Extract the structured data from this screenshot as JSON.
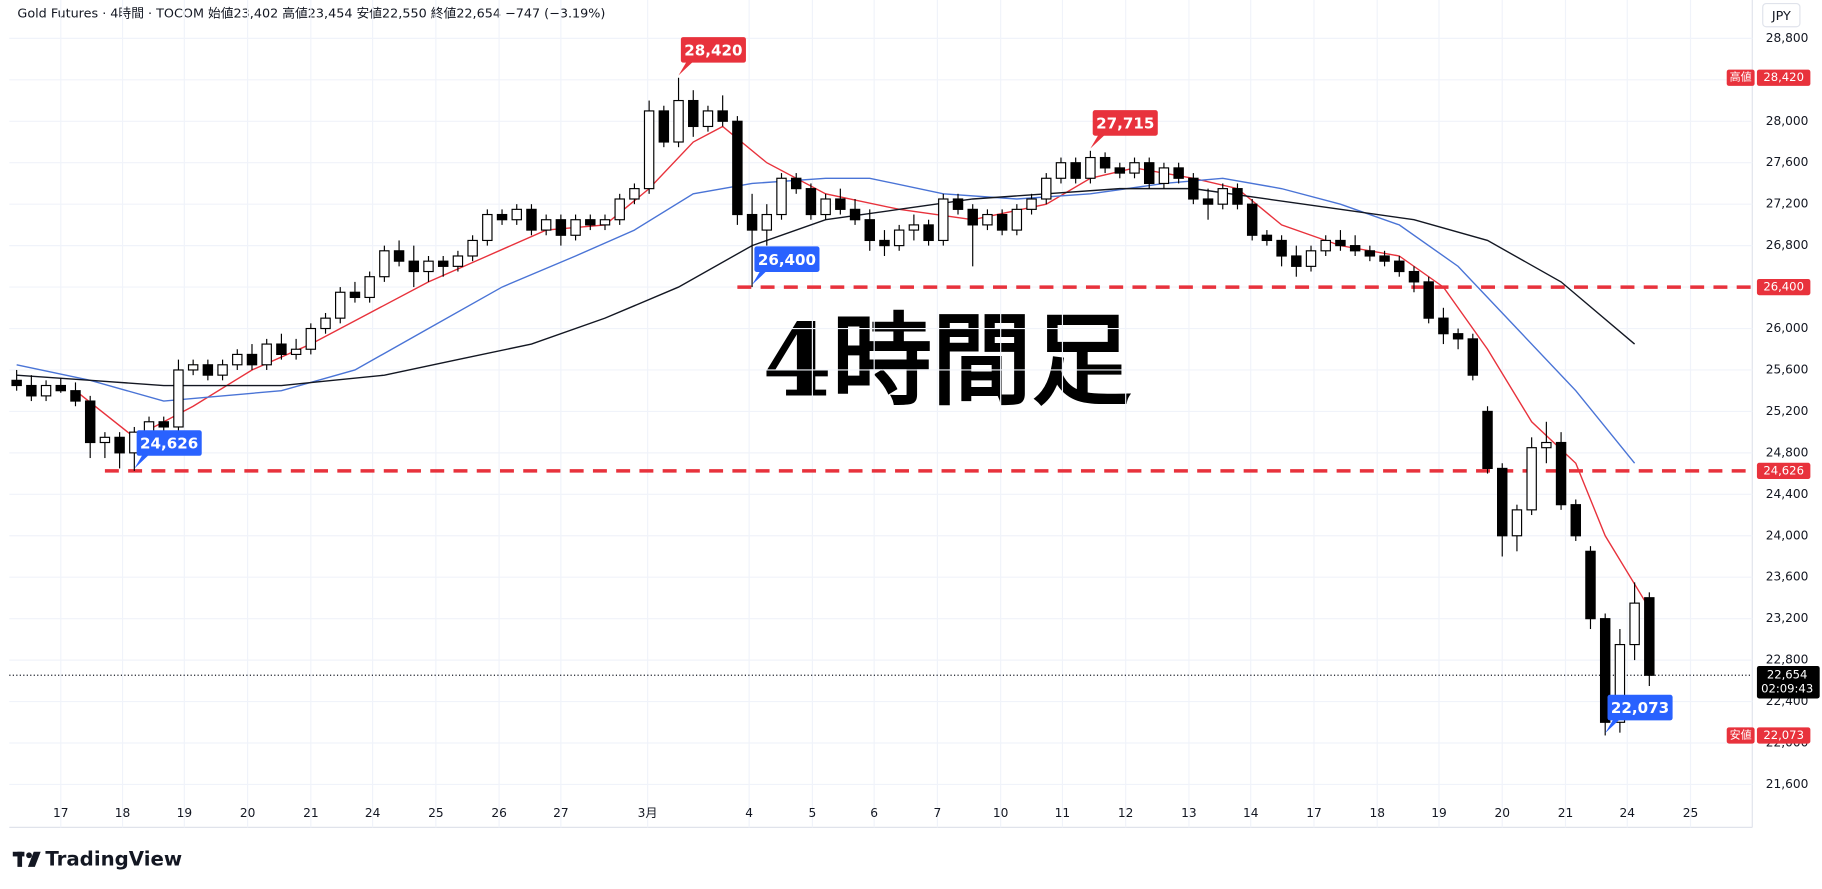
{
  "header": {
    "title": "Gold Futures · 4時間 · TOCOM  始値23,402  高値23,454  安値22,550  終値22,654  −747 (−3.19%)",
    "currency": "JPY"
  },
  "footer": {
    "brand": "TradingView"
  },
  "chart_data": {
    "type": "candlestick",
    "watermark": "4時間足",
    "xlim": [
      -0.5,
      118
    ],
    "ylim": [
      21455,
      29170
    ],
    "grid": true,
    "up_color": "#ffffff",
    "down_color": "#000000",
    "xticks": [
      {
        "value": 3.0,
        "label": "17"
      },
      {
        "value": 7.2,
        "label": "18"
      },
      {
        "value": 11.4,
        "label": "19"
      },
      {
        "value": 15.7,
        "label": "20"
      },
      {
        "value": 20.0,
        "label": "21"
      },
      {
        "value": 24.2,
        "label": "24"
      },
      {
        "value": 28.5,
        "label": "25"
      },
      {
        "value": 32.8,
        "label": "26"
      },
      {
        "value": 37.0,
        "label": "27"
      },
      {
        "value": 42.9,
        "label": "3月"
      },
      {
        "value": 49.8,
        "label": "4"
      },
      {
        "value": 54.1,
        "label": "5"
      },
      {
        "value": 58.3,
        "label": "6"
      },
      {
        "value": 62.6,
        "label": "7"
      },
      {
        "value": 66.9,
        "label": "10"
      },
      {
        "value": 71.1,
        "label": "11"
      },
      {
        "value": 75.4,
        "label": "12"
      },
      {
        "value": 79.7,
        "label": "13"
      },
      {
        "value": 83.9,
        "label": "14"
      },
      {
        "value": 88.2,
        "label": "17"
      },
      {
        "value": 92.5,
        "label": "18"
      },
      {
        "value": 96.7,
        "label": "19"
      },
      {
        "value": 101.0,
        "label": "20"
      },
      {
        "value": 105.3,
        "label": "21"
      },
      {
        "value": 109.5,
        "label": "24"
      },
      {
        "value": 113.8,
        "label": "25"
      }
    ],
    "yticks": [
      {
        "value": 21600,
        "label": "21,600"
      },
      {
        "value": 22000,
        "label": "22,000"
      },
      {
        "value": 22400,
        "label": "22,400"
      },
      {
        "value": 22800,
        "label": "22,800"
      },
      {
        "value": 23200,
        "label": "23,200"
      },
      {
        "value": 23600,
        "label": "23,600"
      },
      {
        "value": 24000,
        "label": "24,000"
      },
      {
        "value": 24400,
        "label": "24,400"
      },
      {
        "value": 24800,
        "label": "24,800"
      },
      {
        "value": 25200,
        "label": "25,200"
      },
      {
        "value": 25600,
        "label": "25,600"
      },
      {
        "value": 26000,
        "label": "26,000"
      },
      {
        "value": 26400,
        "label": "26,400"
      },
      {
        "value": 26800,
        "label": "26,800"
      },
      {
        "value": 27200,
        "label": "27,200"
      },
      {
        "value": 27600,
        "label": "27,600"
      },
      {
        "value": 28000,
        "label": "28,000"
      },
      {
        "value": 28400,
        "label": "28,400"
      },
      {
        "value": 28800,
        "label": "28,800"
      }
    ],
    "ohlc": [
      [
        25500,
        25600,
        25400,
        25450
      ],
      [
        25450,
        25550,
        25300,
        25350
      ],
      [
        25350,
        25500,
        25300,
        25450
      ],
      [
        25450,
        25520,
        25380,
        25400
      ],
      [
        25400,
        25480,
        25250,
        25300
      ],
      [
        25300,
        25350,
        24750,
        24900
      ],
      [
        24900,
        25000,
        24750,
        24950
      ],
      [
        24950,
        25000,
        24650,
        24800
      ],
      [
        24800,
        25050,
        24626,
        25000
      ],
      [
        25000,
        25150,
        24950,
        25100
      ],
      [
        25100,
        25150,
        25000,
        25050
      ],
      [
        25050,
        25700,
        25000,
        25600
      ],
      [
        25600,
        25700,
        25550,
        25650
      ],
      [
        25650,
        25700,
        25500,
        25550
      ],
      [
        25550,
        25700,
        25500,
        25650
      ],
      [
        25650,
        25800,
        25600,
        25750
      ],
      [
        25750,
        25850,
        25600,
        25650
      ],
      [
        25650,
        25900,
        25600,
        25850
      ],
      [
        25850,
        25950,
        25700,
        25750
      ],
      [
        25750,
        25900,
        25700,
        25800
      ],
      [
        25800,
        26050,
        25750,
        26000
      ],
      [
        26000,
        26150,
        25950,
        26100
      ],
      [
        26100,
        26400,
        26050,
        26350
      ],
      [
        26350,
        26450,
        26250,
        26300
      ],
      [
        26300,
        26550,
        26250,
        26500
      ],
      [
        26500,
        26800,
        26450,
        26750
      ],
      [
        26750,
        26850,
        26600,
        26650
      ],
      [
        26650,
        26800,
        26400,
        26550
      ],
      [
        26550,
        26700,
        26450,
        26650
      ],
      [
        26650,
        26700,
        26500,
        26600
      ],
      [
        26600,
        26750,
        26550,
        26700
      ],
      [
        26700,
        26900,
        26650,
        26850
      ],
      [
        26850,
        27150,
        26800,
        27100
      ],
      [
        27100,
        27150,
        27000,
        27050
      ],
      [
        27050,
        27200,
        27000,
        27150
      ],
      [
        27150,
        27200,
        26900,
        26950
      ],
      [
        26950,
        27100,
        26900,
        27050
      ],
      [
        27050,
        27100,
        26800,
        26900
      ],
      [
        26900,
        27100,
        26850,
        27050
      ],
      [
        27050,
        27100,
        26950,
        27000
      ],
      [
        27000,
        27100,
        26950,
        27050
      ],
      [
        27050,
        27300,
        27000,
        27250
      ],
      [
        27250,
        27400,
        27200,
        27350
      ],
      [
        27350,
        28200,
        27300,
        28100
      ],
      [
        28100,
        28150,
        27750,
        27800
      ],
      [
        27800,
        28420,
        27750,
        28200
      ],
      [
        28200,
        28300,
        27850,
        27950
      ],
      [
        27950,
        28150,
        27900,
        28100
      ],
      [
        28100,
        28250,
        27950,
        28000
      ],
      [
        28000,
        28050,
        27000,
        27100
      ],
      [
        27100,
        27300,
        26400,
        26950
      ],
      [
        26950,
        27200,
        26800,
        27100
      ],
      [
        27100,
        27500,
        27050,
        27450
      ],
      [
        27450,
        27500,
        27300,
        27350
      ],
      [
        27350,
        27400,
        27050,
        27100
      ],
      [
        27100,
        27300,
        27050,
        27250
      ],
      [
        27250,
        27350,
        27100,
        27150
      ],
      [
        27150,
        27250,
        27000,
        27050
      ],
      [
        27050,
        27150,
        26750,
        26850
      ],
      [
        26850,
        26950,
        26700,
        26800
      ],
      [
        26800,
        27000,
        26750,
        26950
      ],
      [
        26950,
        27100,
        26850,
        27000
      ],
      [
        27000,
        27050,
        26800,
        26850
      ],
      [
        26850,
        27300,
        26800,
        27250
      ],
      [
        27250,
        27300,
        27100,
        27150
      ],
      [
        27150,
        27200,
        26600,
        27000
      ],
      [
        27000,
        27150,
        26950,
        27100
      ],
      [
        27100,
        27150,
        26900,
        26950
      ],
      [
        26950,
        27200,
        26900,
        27150
      ],
      [
        27150,
        27300,
        27100,
        27250
      ],
      [
        27250,
        27500,
        27200,
        27450
      ],
      [
        27450,
        27650,
        27400,
        27600
      ],
      [
        27600,
        27650,
        27400,
        27450
      ],
      [
        27450,
        27715,
        27400,
        27650
      ],
      [
        27650,
        27700,
        27500,
        27550
      ],
      [
        27550,
        27600,
        27450,
        27500
      ],
      [
        27500,
        27650,
        27450,
        27600
      ],
      [
        27600,
        27650,
        27350,
        27400
      ],
      [
        27400,
        27600,
        27350,
        27550
      ],
      [
        27550,
        27600,
        27400,
        27450
      ],
      [
        27450,
        27500,
        27200,
        27250
      ],
      [
        27250,
        27350,
        27050,
        27200
      ],
      [
        27200,
        27400,
        27150,
        27350
      ],
      [
        27350,
        27400,
        27150,
        27200
      ],
      [
        27200,
        27250,
        26850,
        26900
      ],
      [
        26900,
        26950,
        26800,
        26850
      ],
      [
        26850,
        26900,
        26600,
        26700
      ],
      [
        26700,
        26800,
        26500,
        26600
      ],
      [
        26600,
        26800,
        26550,
        26750
      ],
      [
        26750,
        26900,
        26700,
        26850
      ],
      [
        26850,
        26950,
        26750,
        26800
      ],
      [
        26800,
        26900,
        26700,
        26750
      ],
      [
        26750,
        26800,
        26650,
        26700
      ],
      [
        26700,
        26750,
        26600,
        26650
      ],
      [
        26650,
        26700,
        26500,
        26550
      ],
      [
        26550,
        26600,
        26350,
        26450
      ],
      [
        26450,
        26500,
        26050,
        26100
      ],
      [
        26100,
        26200,
        25850,
        25950
      ],
      [
        25950,
        26000,
        25800,
        25900
      ],
      [
        25900,
        25950,
        25500,
        25550
      ],
      [
        25200,
        25250,
        24600,
        24650
      ],
      [
        24650,
        24700,
        23800,
        24000
      ],
      [
        24000,
        24300,
        23850,
        24250
      ],
      [
        24250,
        24950,
        24200,
        24850
      ],
      [
        24850,
        25100,
        24700,
        24900
      ],
      [
        24900,
        25000,
        24250,
        24300
      ],
      [
        24300,
        24350,
        23950,
        24000
      ],
      [
        23850,
        23900,
        23100,
        23200
      ],
      [
        23200,
        23250,
        22073,
        22200
      ],
      [
        22200,
        23100,
        22100,
        22950
      ],
      [
        22950,
        23550,
        22800,
        23350
      ],
      [
        23402,
        23454,
        22550,
        22654
      ]
    ],
    "series": [
      {
        "color": "#e8323c",
        "x": [
          4,
          8,
          12,
          16,
          20,
          24,
          28,
          32,
          36,
          40,
          43,
          46,
          48,
          51,
          55,
          60,
          65,
          70,
          73,
          76,
          80,
          83,
          86,
          90,
          94,
          97,
          100,
          103,
          106,
          108,
          111
        ],
        "values": [
          25400,
          24950,
          25250,
          25600,
          25850,
          26150,
          26450,
          26700,
          26950,
          27000,
          27350,
          27800,
          27950,
          27600,
          27300,
          27150,
          27050,
          27200,
          27450,
          27550,
          27450,
          27350,
          27000,
          26800,
          26700,
          26400,
          25800,
          25100,
          24700,
          24000,
          23300
        ]
      },
      {
        "color": "#4a74d6",
        "x": [
          0,
          5,
          10,
          18,
          23,
          28,
          33,
          38,
          42,
          46,
          50,
          55,
          58,
          63,
          68,
          73,
          78,
          82,
          86,
          90,
          94,
          98,
          102,
          106,
          110
        ],
        "values": [
          25650,
          25500,
          25300,
          25400,
          25600,
          26000,
          26400,
          26700,
          26950,
          27300,
          27400,
          27450,
          27450,
          27300,
          27250,
          27300,
          27400,
          27450,
          27350,
          27200,
          27000,
          26600,
          26000,
          25400,
          24700
        ]
      },
      {
        "color": "#131722",
        "x": [
          0,
          5,
          10,
          18,
          25,
          30,
          35,
          40,
          45,
          50,
          55,
          60,
          65,
          70,
          75,
          80,
          85,
          90,
          95,
          100,
          105,
          110
        ],
        "values": [
          25550,
          25500,
          25450,
          25450,
          25550,
          25700,
          25850,
          26100,
          26400,
          26800,
          27050,
          27150,
          27250,
          27300,
          27350,
          27350,
          27250,
          27150,
          27050,
          26850,
          26450,
          25850
        ]
      }
    ],
    "levels": [
      {
        "value": 26400,
        "label": "26,400",
        "x_from": 49,
        "color": "#e8323c"
      },
      {
        "value": 24626,
        "label": "24,626",
        "x_from": 6,
        "color": "#e8323c"
      }
    ],
    "annotations": [
      {
        "x": 45,
        "value": 28420,
        "label": "28,420",
        "kind": "high",
        "color": "#e8323c"
      },
      {
        "x": 73,
        "value": 27715,
        "label": "27,715",
        "kind": "high",
        "color": "#e8323c"
      },
      {
        "x": 50,
        "value": 26400,
        "label": "26,400",
        "kind": "low",
        "color": "#2962ff"
      },
      {
        "x": 8,
        "value": 24626,
        "label": "24,626",
        "kind": "low",
        "color": "#2962ff"
      },
      {
        "x": 108,
        "value": 22073,
        "label": "22,073",
        "kind": "low",
        "color": "#2962ff"
      }
    ],
    "high_tag": {
      "text": "高値",
      "value": 28420,
      "label": "28,420",
      "color": "#e8323c"
    },
    "low_tag": {
      "text": "安値",
      "value": 22073,
      "label": "22,073",
      "color": "#e8323c"
    },
    "last": {
      "value": 22654,
      "label": "22,654",
      "countdown": "02:09:43"
    }
  }
}
